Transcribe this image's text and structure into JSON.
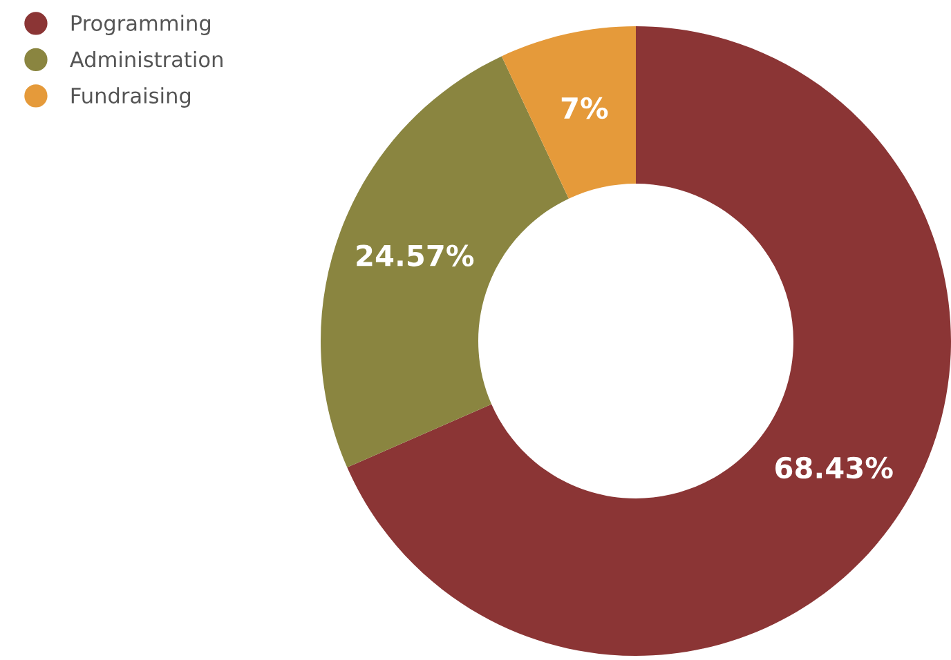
{
  "chart_data": {
    "type": "donut",
    "categories": [
      "Programming",
      "Administration",
      "Fundraising"
    ],
    "values": [
      68.43,
      24.57,
      7
    ],
    "colors": [
      "#8b3535",
      "#8a8540",
      "#e59a3a"
    ],
    "value_labels": [
      "68.43%",
      "24.57%",
      "7%"
    ],
    "legend": "top left"
  }
}
